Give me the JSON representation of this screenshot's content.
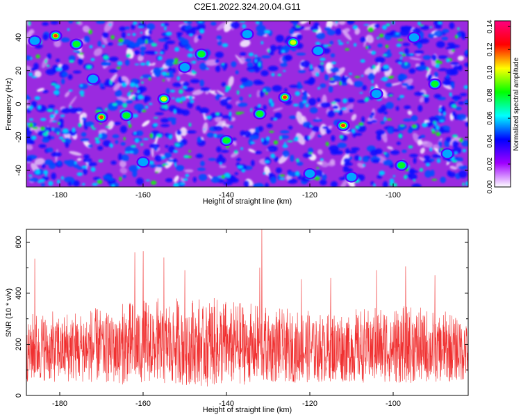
{
  "chart_data": [
    {
      "type": "heatmap",
      "title": "C2E1.2022.324.20.04.G11",
      "xlabel": "Height of straight line (km)",
      "ylabel": "Frequency (Hz)",
      "xlim": [
        -188,
        -82
      ],
      "ylim": [
        -50,
        50
      ],
      "x_ticks": [
        -180,
        -160,
        -140,
        -120,
        -100
      ],
      "y_ticks": [
        -40,
        -20,
        0,
        20,
        40
      ],
      "colorbar": {
        "label": "Normalized spectral amplitude",
        "range": [
          0,
          0.145
        ],
        "ticks": [
          "0.00",
          "0.02",
          "0.04",
          "0.06",
          "0.08",
          "0.10",
          "0.12",
          "0.14"
        ],
        "colors": [
          "#ffffff",
          "#a000ff",
          "#0000ff",
          "#00ffff",
          "#00ff00",
          "#ffff00",
          "#ff0000",
          "#ff0080"
        ]
      },
      "grid": false,
      "peaks": [
        {
          "x": -181,
          "y": 41,
          "v": 0.13
        },
        {
          "x": -170,
          "y": -8,
          "v": 0.12
        },
        {
          "x": -176,
          "y": 36,
          "v": 0.09
        },
        {
          "x": -155,
          "y": 3,
          "v": 0.11
        },
        {
          "x": -126,
          "y": 4,
          "v": 0.12
        },
        {
          "x": -112,
          "y": -13,
          "v": 0.13
        },
        {
          "x": -146,
          "y": 30,
          "v": 0.09
        },
        {
          "x": -164,
          "y": -7,
          "v": 0.08
        },
        {
          "x": -132,
          "y": -6,
          "v": 0.09
        },
        {
          "x": -124,
          "y": 37,
          "v": 0.1
        },
        {
          "x": -118,
          "y": 32,
          "v": 0.07
        },
        {
          "x": -98,
          "y": -37,
          "v": 0.08
        },
        {
          "x": -110,
          "y": -44,
          "v": 0.07
        },
        {
          "x": -90,
          "y": 12,
          "v": 0.08
        },
        {
          "x": -140,
          "y": -22,
          "v": 0.08
        },
        {
          "x": -150,
          "y": 22,
          "v": 0.07
        },
        {
          "x": -186,
          "y": 38,
          "v": 0.06
        },
        {
          "x": -104,
          "y": 6,
          "v": 0.07
        },
        {
          "x": -160,
          "y": -35,
          "v": 0.07
        },
        {
          "x": -135,
          "y": 42,
          "v": 0.07
        },
        {
          "x": -87,
          "y": -30,
          "v": 0.07
        },
        {
          "x": -120,
          "y": -42,
          "v": 0.06
        },
        {
          "x": -95,
          "y": 40,
          "v": 0.07
        },
        {
          "x": -172,
          "y": 15,
          "v": 0.06
        }
      ]
    },
    {
      "type": "line",
      "xlabel": "Height of straight line (km)",
      "ylabel": "SNR (10 * v/v)",
      "xlim": [
        -188,
        -82
      ],
      "ylim": [
        0,
        650
      ],
      "x_ticks": [
        -180,
        -160,
        -140,
        -120,
        -100
      ],
      "y_ticks": [
        0,
        200,
        400,
        600
      ],
      "series_color": "#f03030",
      "grid": false,
      "peaks": [
        {
          "x": -131.5,
          "y": 650
        },
        {
          "x": -186,
          "y": 535
        },
        {
          "x": -162,
          "y": 560
        },
        {
          "x": -160,
          "y": 565
        },
        {
          "x": -155,
          "y": 540
        },
        {
          "x": -132,
          "y": 500
        },
        {
          "x": -150,
          "y": 490
        },
        {
          "x": -104,
          "y": 490
        },
        {
          "x": -97,
          "y": 505
        },
        {
          "x": -122,
          "y": 455
        },
        {
          "x": -115,
          "y": 460
        },
        {
          "x": -90,
          "y": 470
        }
      ],
      "baseline_low": 50,
      "baseline_mid": 170,
      "baseline_high": 320
    }
  ]
}
